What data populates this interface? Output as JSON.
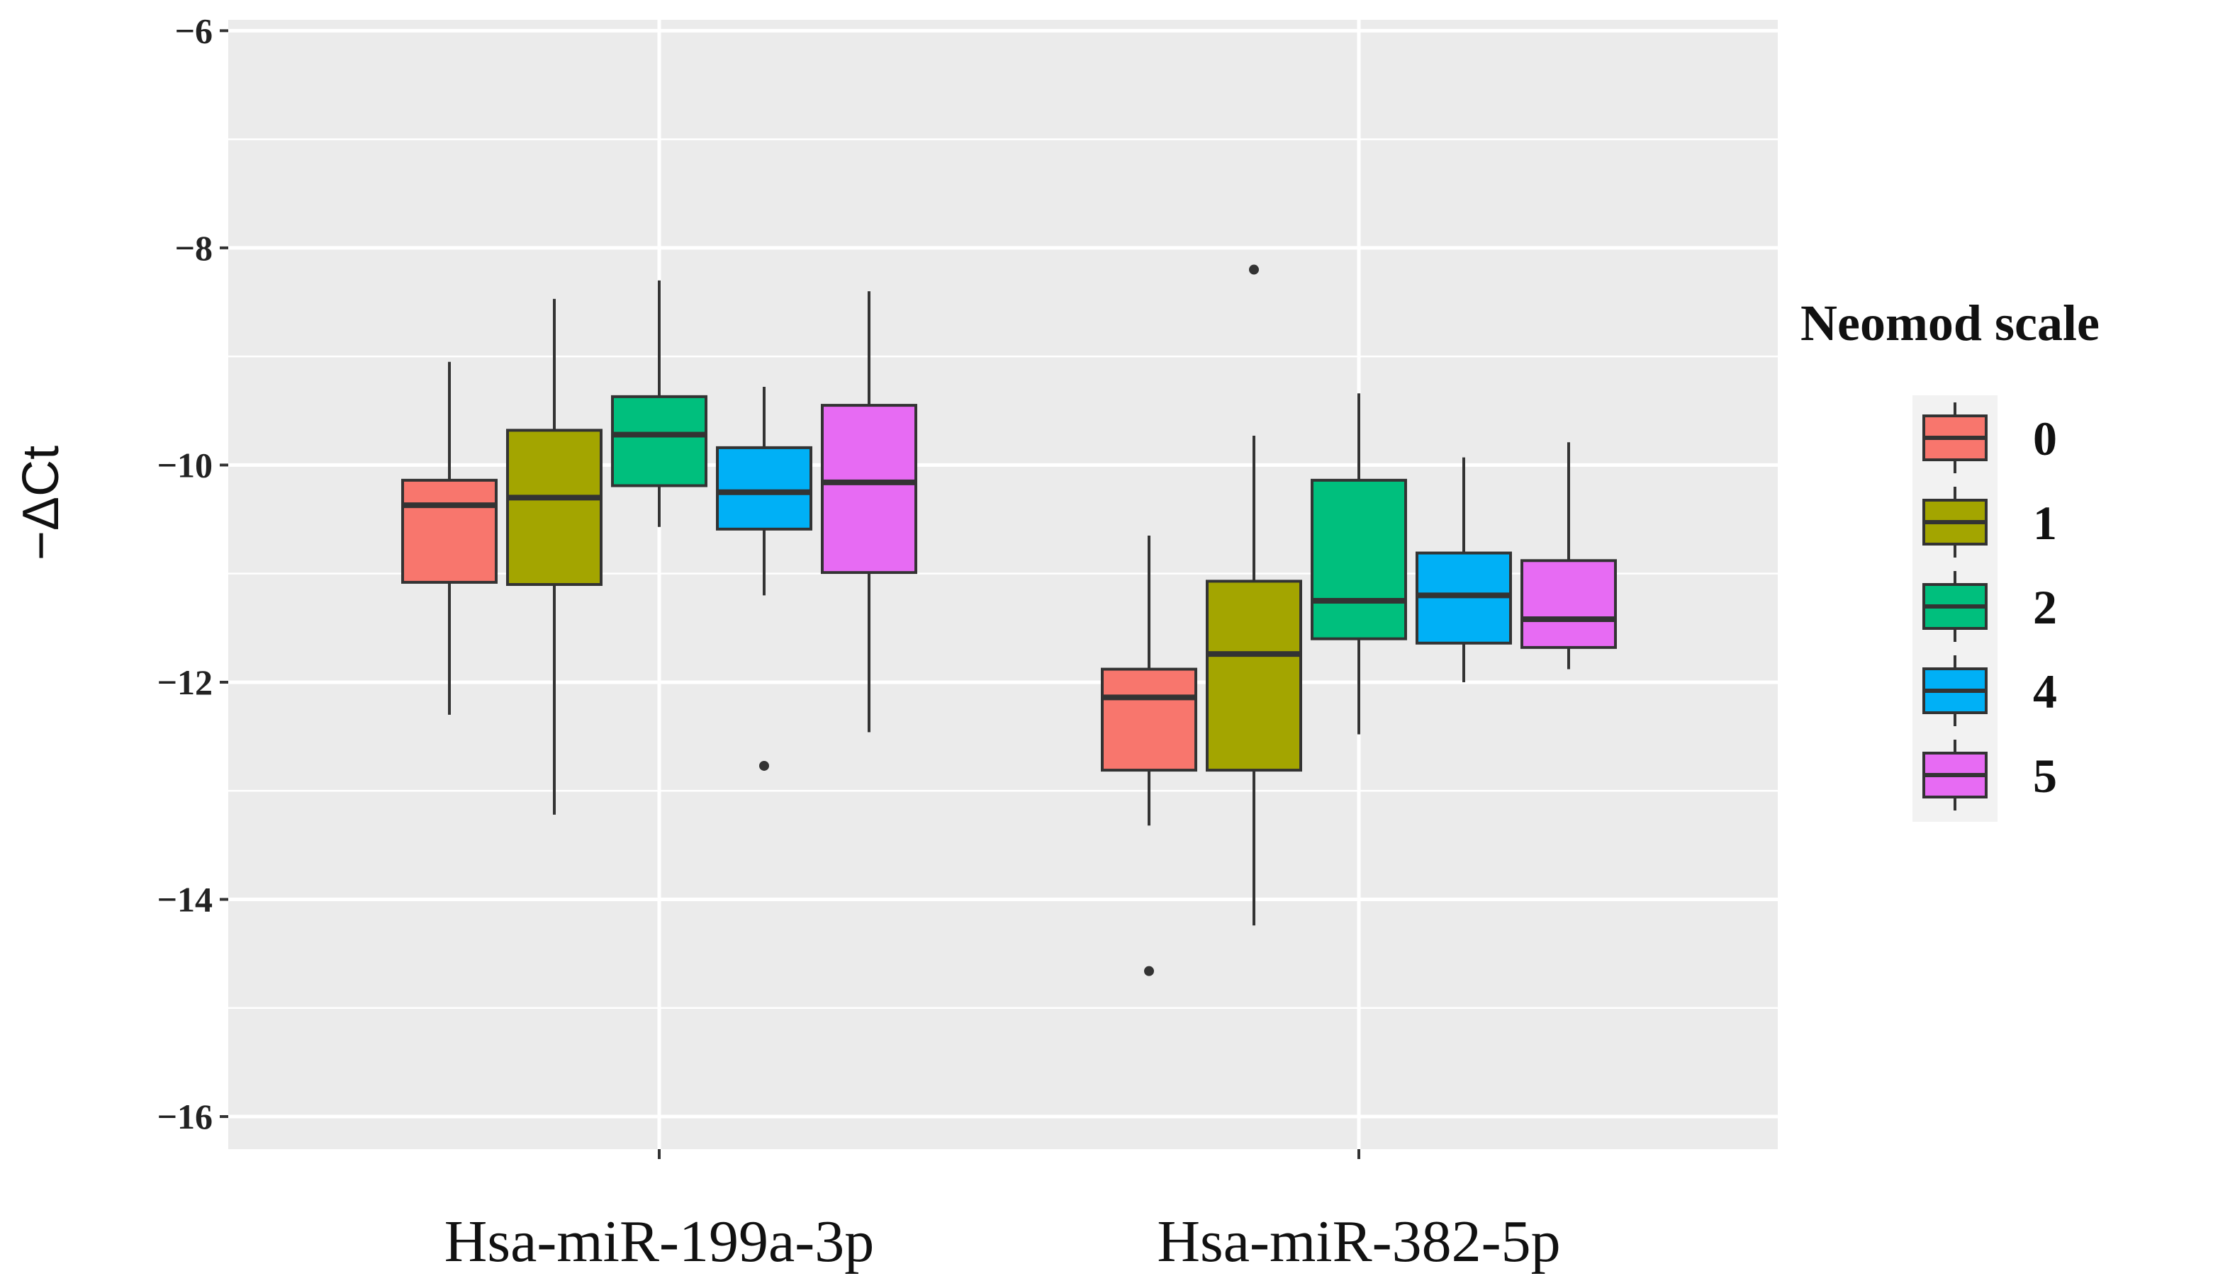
{
  "chart_data": {
    "type": "boxplot",
    "title": "",
    "xlabel": "",
    "ylabel": "−ΔCt",
    "ylim": [
      -16.3,
      -5.9
    ],
    "yticks": [
      {
        "value": -6,
        "label": "−6"
      },
      {
        "value": -8,
        "label": "−8"
      },
      {
        "value": -10,
        "label": "−10"
      },
      {
        "value": -12,
        "label": "−12"
      },
      {
        "value": -14,
        "label": "−14"
      },
      {
        "value": -16,
        "label": "−16"
      }
    ],
    "categories": [
      "Hsa-miR-199a-3p",
      "Hsa-miR-382-5p"
    ],
    "legend": {
      "title": "Neomod scale",
      "position": "right",
      "entries": [
        {
          "label": "0",
          "color": "#F8766D"
        },
        {
          "label": "1",
          "color": "#A3A500"
        },
        {
          "label": "2",
          "color": "#00BF7D"
        },
        {
          "label": "4",
          "color": "#00B0F6"
        },
        {
          "label": "5",
          "color": "#E76BF3"
        }
      ]
    },
    "series": [
      {
        "category": "Hsa-miR-199a-3p",
        "boxes": [
          {
            "group": "0",
            "whisker_low": -12.3,
            "q1": -11.08,
            "median": -10.37,
            "q3": -10.14,
            "whisker_high": -9.05,
            "outliers": []
          },
          {
            "group": "1",
            "whisker_low": -13.22,
            "q1": -11.1,
            "median": -10.3,
            "q3": -9.68,
            "whisker_high": -8.47,
            "outliers": []
          },
          {
            "group": "2",
            "whisker_low": -10.57,
            "q1": -10.19,
            "median": -9.72,
            "q3": -9.37,
            "whisker_high": -8.3,
            "outliers": []
          },
          {
            "group": "4",
            "whisker_low": -11.2,
            "q1": -10.59,
            "median": -10.25,
            "q3": -9.84,
            "whisker_high": -9.28,
            "outliers": [
              -12.77
            ]
          },
          {
            "group": "5",
            "whisker_low": -12.46,
            "q1": -10.99,
            "median": -10.16,
            "q3": -9.45,
            "whisker_high": -8.4,
            "outliers": []
          }
        ]
      },
      {
        "category": "Hsa-miR-382-5p",
        "boxes": [
          {
            "group": "0",
            "whisker_low": -13.32,
            "q1": -12.81,
            "median": -12.14,
            "q3": -11.88,
            "whisker_high": -10.65,
            "outliers": [
              -14.66
            ]
          },
          {
            "group": "1",
            "whisker_low": -14.24,
            "q1": -12.81,
            "median": -11.74,
            "q3": -11.07,
            "whisker_high": -9.73,
            "outliers": [
              -8.2
            ]
          },
          {
            "group": "2",
            "whisker_low": -12.48,
            "q1": -11.6,
            "median": -11.25,
            "q3": -10.14,
            "whisker_high": -9.34,
            "outliers": []
          },
          {
            "group": "4",
            "whisker_low": -12.0,
            "q1": -11.64,
            "median": -11.2,
            "q3": -10.81,
            "whisker_high": -9.93,
            "outliers": []
          },
          {
            "group": "5",
            "whisker_low": -11.88,
            "q1": -11.68,
            "median": -11.42,
            "q3": -10.88,
            "whisker_high": -9.79,
            "outliers": []
          }
        ]
      }
    ]
  }
}
